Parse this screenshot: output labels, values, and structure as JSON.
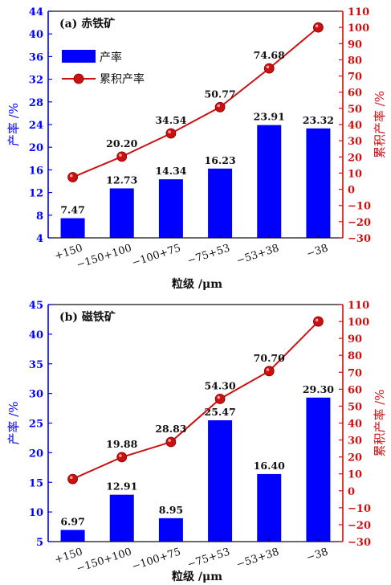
{
  "chart_data": [
    {
      "type": "bar",
      "title": "(a) 赤铁矿",
      "categories": [
        "+150",
        "−150+100",
        "−100+75",
        "−75+53",
        "−53+38",
        "−38"
      ],
      "xlabel": "粒级 /μm",
      "ylabel": "产率 /%",
      "y2label": "累积产率 /%",
      "ylim": [
        4,
        44
      ],
      "yticks": [
        4,
        8,
        12,
        16,
        20,
        24,
        28,
        32,
        36,
        40,
        44
      ],
      "y2lim": [
        -30,
        110
      ],
      "y2ticks": [
        -30,
        -20,
        -10,
        0,
        10,
        20,
        30,
        40,
        50,
        60,
        70,
        80,
        90,
        100,
        110
      ],
      "legend_position": "top-left",
      "grid": false,
      "series": [
        {
          "name": "产率",
          "kind": "bar",
          "axis": "left",
          "color": "#0000ff",
          "values": [
            7.47,
            12.73,
            14.34,
            16.23,
            23.91,
            23.32
          ],
          "labels": [
            "7.47",
            "12.73",
            "14.34",
            "16.23",
            "23.91",
            "23.32"
          ]
        },
        {
          "name": "累积产率",
          "kind": "line",
          "axis": "right",
          "color": "#cc1010",
          "values": [
            7.47,
            20.2,
            34.54,
            50.77,
            74.68,
            100
          ],
          "labels": [
            "",
            "20.20",
            "34.54",
            "50.77",
            "74.68",
            ""
          ]
        }
      ]
    },
    {
      "type": "bar",
      "title": "(b) 磁铁矿",
      "categories": [
        "+150",
        "−150+100",
        "−100+75",
        "−75+53",
        "−53+38",
        "−38"
      ],
      "xlabel": "粒级 /μm",
      "ylabel": "产率 /%",
      "y2label": "累积产率 /%",
      "ylim": [
        5,
        45
      ],
      "yticks": [
        5,
        10,
        15,
        20,
        25,
        30,
        35,
        40,
        45
      ],
      "y2lim": [
        -30,
        110
      ],
      "y2ticks": [
        -30,
        -20,
        -10,
        0,
        10,
        20,
        30,
        40,
        50,
        60,
        70,
        80,
        90,
        100,
        110
      ],
      "grid": false,
      "series": [
        {
          "name": "产率",
          "kind": "bar",
          "axis": "left",
          "color": "#0000ff",
          "values": [
            6.97,
            12.91,
            8.95,
            25.47,
            16.4,
            29.3
          ],
          "labels": [
            "6.97",
            "12.91",
            "8.95",
            "25.47",
            "16.40",
            "29.30"
          ]
        },
        {
          "name": "累积产率",
          "kind": "line",
          "axis": "right",
          "color": "#cc1010",
          "values": [
            6.97,
            19.88,
            28.83,
            54.3,
            70.7,
            100
          ],
          "labels": [
            "",
            "19.88",
            "28.83",
            "54.30",
            "70.70",
            ""
          ]
        }
      ]
    }
  ]
}
